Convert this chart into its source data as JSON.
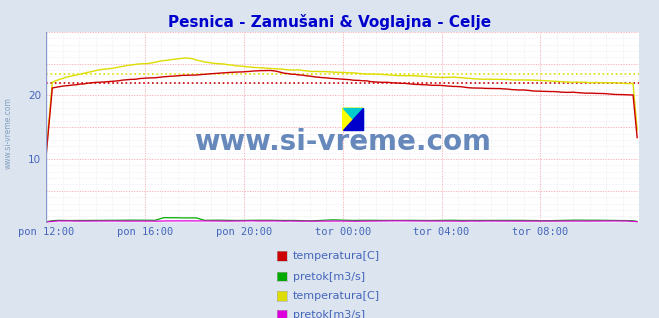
{
  "title": "Pesnica - Zamušani & Voglajna - Celje",
  "title_color": "#0000cc",
  "bg_color": "#dce4f0",
  "plot_bg_color": "#ffffff",
  "grid_color_major": "#ffaaaa",
  "grid_color_minor": "#ddddee",
  "watermark": "www.si-vreme.com",
  "watermark_color": "#6688bb",
  "xlim": [
    0,
    288
  ],
  "ylim": [
    0,
    30
  ],
  "yticks": [
    10,
    20
  ],
  "xtick_labels": [
    "pon 12:00",
    "pon 16:00",
    "pon 20:00",
    "tor 00:00",
    "tor 04:00",
    "tor 08:00"
  ],
  "xtick_positions": [
    0,
    48,
    96,
    144,
    192,
    240
  ],
  "pesnica_temp_avg": 21.9,
  "voglajna_temp_avg": 23.3,
  "pesnica_temp_color": "#cc0000",
  "pesnica_pretok_color": "#00aa00",
  "voglajna_temp_color": "#dddd00",
  "voglajna_pretok_color": "#dd00dd",
  "font_color": "#4466bb",
  "tick_fontsize": 7.5,
  "title_fontsize": 11,
  "logo_colors": [
    "#ffff00",
    "#00cccc",
    "#0000cc"
  ],
  "left_label": "www.si-vreme.com",
  "legend_labels": [
    "temperatura[C]",
    "pretok[m3/s]",
    "temperatura[C]",
    "pretok[m3/s]"
  ]
}
